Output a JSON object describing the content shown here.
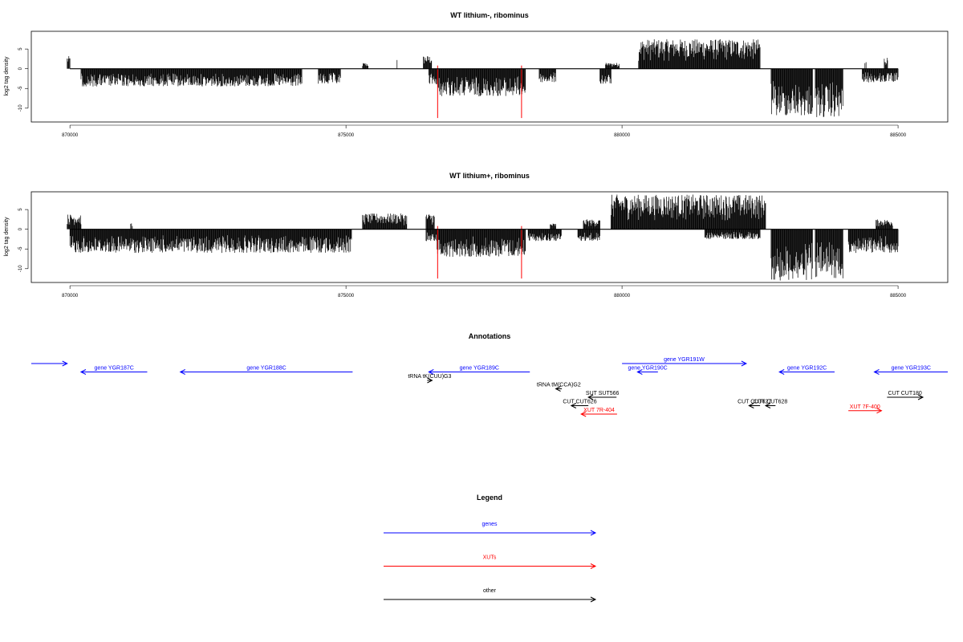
{
  "colors": {
    "genes": "#0000ff",
    "xuts": "#ff0000",
    "other": "#000000",
    "bars": "#000000",
    "markers": "#ff0000"
  },
  "chart_data": [
    {
      "type": "bar",
      "title": "WT lithium-, ribominus",
      "ylabel": "log2 tag density",
      "xlim": [
        869300,
        885900
      ],
      "ylim": [
        -13.5,
        9.5
      ],
      "xticks": [
        "870000",
        "875000",
        "880000",
        "885000"
      ],
      "yticks": [
        "-10",
        "-5",
        "0",
        "5"
      ],
      "grid": false,
      "marker_lines_x": [
        876660,
        878180
      ],
      "positive_regions": [
        {
          "start": 869950,
          "end": 870000,
          "max": 3.2
        },
        {
          "start": 875300,
          "end": 875400,
          "max": 1.5
        },
        {
          "start": 875920,
          "end": 875930,
          "max": 2.5
        },
        {
          "start": 876400,
          "end": 876550,
          "max": 3.3
        },
        {
          "start": 879700,
          "end": 879950,
          "max": 1.5
        },
        {
          "start": 880300,
          "end": 882500,
          "max": 7.5
        },
        {
          "start": 884400,
          "end": 884420,
          "max": 2.0
        },
        {
          "start": 884750,
          "end": 884810,
          "max": 3.0
        }
      ],
      "negative_regions": [
        {
          "start": 870200,
          "end": 874200,
          "min": -4.5
        },
        {
          "start": 874500,
          "end": 874900,
          "min": -4.0
        },
        {
          "start": 876500,
          "end": 876650,
          "min": -4.0
        },
        {
          "start": 876650,
          "end": 878250,
          "min": -7.0
        },
        {
          "start": 878500,
          "end": 878800,
          "min": -3.5
        },
        {
          "start": 879600,
          "end": 879800,
          "min": -4.0
        },
        {
          "start": 882700,
          "end": 883450,
          "min": -12.0
        },
        {
          "start": 883500,
          "end": 884000,
          "min": -12.5
        },
        {
          "start": 884350,
          "end": 885000,
          "min": -3.5
        }
      ]
    },
    {
      "type": "bar",
      "title": "WT lithium+, ribominus",
      "ylabel": "log2 tag density",
      "xlim": [
        869300,
        885900
      ],
      "ylim": [
        -13.5,
        9.5
      ],
      "xticks": [
        "870000",
        "875000",
        "880000",
        "885000"
      ],
      "yticks": [
        "-10",
        "-5",
        "0",
        "5"
      ],
      "grid": false,
      "marker_lines_x": [
        876660,
        878180
      ],
      "positive_regions": [
        {
          "start": 869950,
          "end": 870200,
          "max": 3.8
        },
        {
          "start": 871100,
          "end": 871130,
          "max": 1.5
        },
        {
          "start": 875300,
          "end": 876100,
          "max": 4.0
        },
        {
          "start": 876450,
          "end": 876600,
          "max": 4.0
        },
        {
          "start": 878700,
          "end": 878800,
          "max": 1.5
        },
        {
          "start": 879300,
          "end": 879600,
          "max": 2.5
        },
        {
          "start": 879800,
          "end": 882600,
          "max": 8.8
        },
        {
          "start": 884600,
          "end": 884900,
          "max": 2.5
        }
      ],
      "negative_regions": [
        {
          "start": 870000,
          "end": 875100,
          "min": -6.0
        },
        {
          "start": 876450,
          "end": 876650,
          "min": -3.0
        },
        {
          "start": 876650,
          "end": 878250,
          "min": -7.0
        },
        {
          "start": 878300,
          "end": 878900,
          "min": -3.0
        },
        {
          "start": 879200,
          "end": 879600,
          "min": -3.0
        },
        {
          "start": 881500,
          "end": 882500,
          "min": -2.5
        },
        {
          "start": 882700,
          "end": 883450,
          "min": -13.0
        },
        {
          "start": 883500,
          "end": 884000,
          "min": -12.5
        },
        {
          "start": 884100,
          "end": 885000,
          "min": -6.0
        }
      ]
    }
  ],
  "annotations": {
    "title": "Annotations",
    "items": [
      {
        "label": "",
        "kind": "gene",
        "start": 869300,
        "end": 869950,
        "strand": "+",
        "row": 0
      },
      {
        "label": "gene YGR187C",
        "kind": "gene",
        "start": 870200,
        "end": 871400,
        "strand": "-",
        "row": 1
      },
      {
        "label": "gene YGR188C",
        "kind": "gene",
        "start": 872000,
        "end": 875120,
        "strand": "-",
        "row": 1
      },
      {
        "label": "gene YGR189C",
        "kind": "gene",
        "start": 876500,
        "end": 878330,
        "strand": "-",
        "row": 1
      },
      {
        "label": "tRNA tK(CUU)G3",
        "kind": "other",
        "start": 876470,
        "end": 876560,
        "strand": "+",
        "row": 2
      },
      {
        "label": "tRNA tM(CCA)G2",
        "kind": "other",
        "start": 878800,
        "end": 878910,
        "strand": "-",
        "row": 3
      },
      {
        "label": "gene YGR190C",
        "kind": "gene",
        "start": 880280,
        "end": 880650,
        "strand": "-",
        "row": 1
      },
      {
        "label": "gene YGR191W",
        "kind": "gene",
        "start": 880000,
        "end": 882250,
        "strand": "+",
        "row": 0
      },
      {
        "label": "gene YGR192C",
        "kind": "gene",
        "start": 882850,
        "end": 883850,
        "strand": "-",
        "row": 1
      },
      {
        "label": "gene YGR193C",
        "kind": "gene",
        "start": 884570,
        "end": 885900,
        "strand": "-",
        "row": 1
      },
      {
        "label": "SUT SUT566",
        "kind": "other",
        "start": 879390,
        "end": 879900,
        "strand": "-",
        "row": 4
      },
      {
        "label": "CUT CUT626",
        "kind": "other",
        "start": 879080,
        "end": 879390,
        "strand": "-",
        "row": 5
      },
      {
        "label": "CUT CUT627",
        "kind": "other",
        "start": 882300,
        "end": 882500,
        "strand": "-",
        "row": 5
      },
      {
        "label": "CUT CUT628",
        "kind": "other",
        "start": 882600,
        "end": 882780,
        "strand": "-",
        "row": 5
      },
      {
        "label": "CUT CUT180",
        "kind": "other",
        "start": 884800,
        "end": 885450,
        "strand": "+",
        "row": 4
      },
      {
        "label": "XUT 7R-404",
        "kind": "xut",
        "start": 879260,
        "end": 879910,
        "strand": "-",
        "row": 6
      },
      {
        "label": "XUT 7F-400",
        "kind": "xut",
        "start": 884100,
        "end": 884700,
        "strand": "+",
        "row": 5.6
      }
    ]
  },
  "legend": {
    "title": "Legend",
    "items": [
      {
        "label": "genes",
        "kind": "gene"
      },
      {
        "label": "XUTs",
        "kind": "xut"
      },
      {
        "label": "other",
        "kind": "other"
      }
    ]
  }
}
